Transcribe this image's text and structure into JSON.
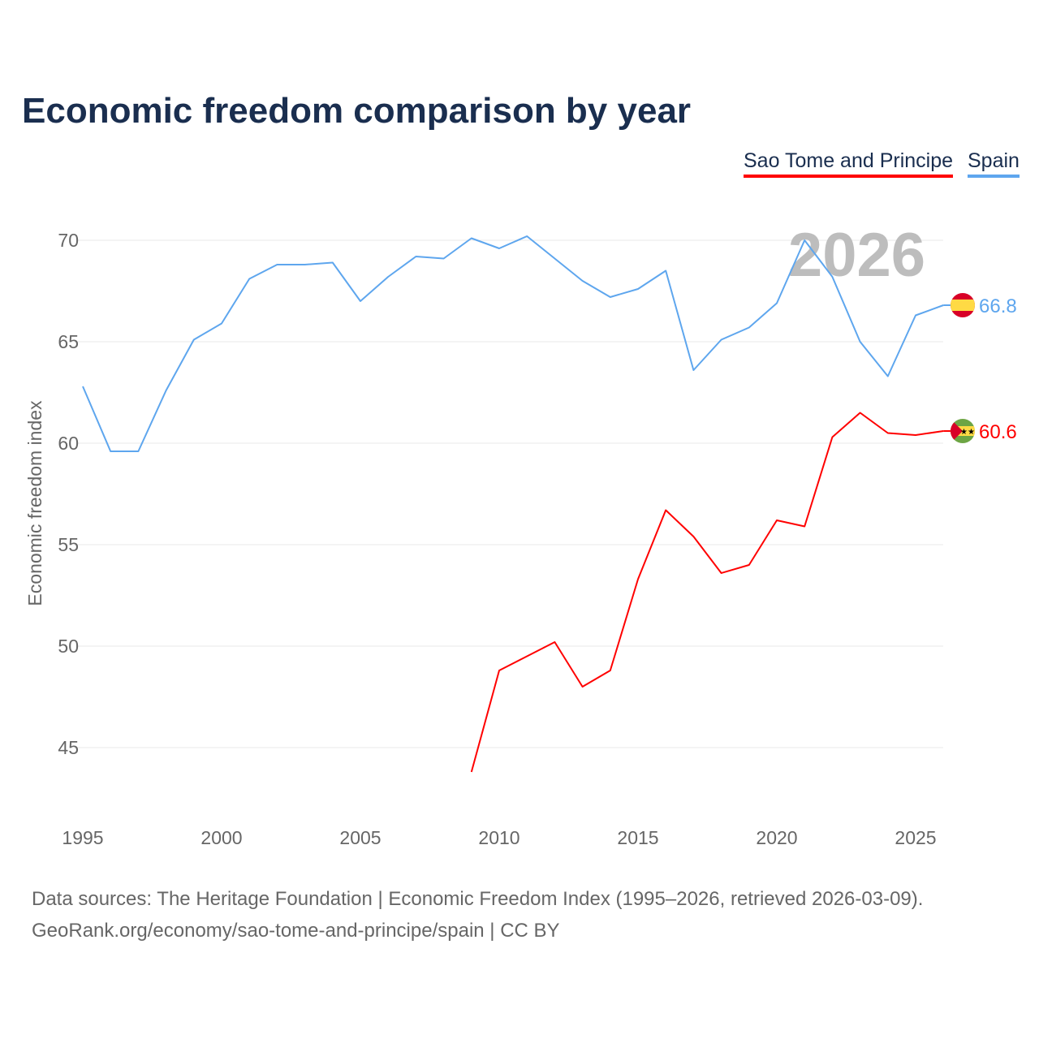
{
  "chart_data": {
    "type": "line",
    "title": "Economic freedom comparison by year",
    "ylabel": "Economic freedom index",
    "xlabel": "",
    "xlim": [
      1995,
      2026
    ],
    "ylim": [
      42,
      72
    ],
    "yticks": [
      45,
      50,
      55,
      60,
      65,
      70
    ],
    "xticks": [
      1995,
      2000,
      2005,
      2010,
      2015,
      2020,
      2025
    ],
    "grid": true,
    "legend_position": "top-right",
    "year_watermark": "2026",
    "series": [
      {
        "name": "Sao Tome and Principe",
        "color": "#ff0000",
        "end_label": "60.6",
        "flag": "sao-tome-flag",
        "x": [
          2009,
          2010,
          2011,
          2012,
          2013,
          2014,
          2015,
          2016,
          2017,
          2018,
          2019,
          2020,
          2021,
          2022,
          2023,
          2024,
          2025,
          2026
        ],
        "values": [
          43.8,
          48.8,
          49.5,
          50.2,
          48.0,
          48.8,
          53.3,
          56.7,
          55.4,
          53.6,
          54.0,
          56.2,
          55.9,
          60.3,
          61.5,
          60.5,
          60.4,
          60.6
        ]
      },
      {
        "name": "Spain",
        "color": "#5ea6ee",
        "end_label": "66.8",
        "flag": "spain-flag",
        "x": [
          1995,
          1996,
          1997,
          1998,
          1999,
          2000,
          2001,
          2002,
          2003,
          2004,
          2005,
          2006,
          2007,
          2008,
          2009,
          2010,
          2011,
          2012,
          2013,
          2014,
          2015,
          2016,
          2017,
          2018,
          2019,
          2020,
          2021,
          2022,
          2023,
          2024,
          2025,
          2026
        ],
        "values": [
          62.8,
          59.6,
          59.6,
          62.6,
          65.1,
          65.9,
          68.1,
          68.8,
          68.8,
          68.9,
          67.0,
          68.2,
          69.2,
          69.1,
          70.1,
          69.6,
          70.2,
          69.1,
          68.0,
          67.2,
          67.6,
          68.5,
          63.6,
          65.1,
          65.7,
          66.9,
          70.0,
          68.2,
          65.0,
          63.3,
          66.3,
          66.8
        ]
      }
    ]
  },
  "footer": {
    "line1": "Data sources: The Heritage Foundation | Economic Freedom Index (1995–2026, retrieved 2026-03-09).",
    "line2": "GeoRank.org/economy/sao-tome-and-principe/spain | CC BY"
  }
}
